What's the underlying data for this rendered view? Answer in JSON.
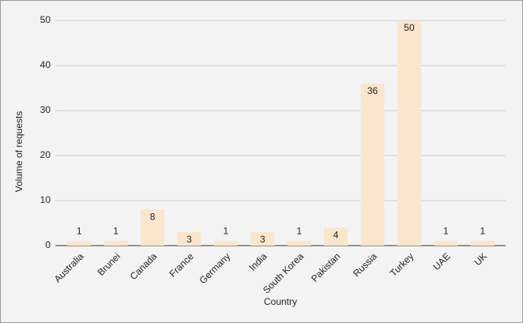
{
  "chart_data": {
    "type": "bar",
    "x_label": "Country",
    "y_label": "Volume of requests",
    "categories": [
      "Australia",
      "Brunei",
      "Canada",
      "France",
      "Germany",
      "India",
      "South Korea",
      "Pakistan",
      "Russia",
      "Turkey",
      "UAE",
      "UK"
    ],
    "values": [
      1,
      1,
      8,
      3,
      1,
      3,
      1,
      4,
      36,
      50,
      1,
      1
    ],
    "color": "#fce5cd",
    "ylim": [
      0,
      50
    ],
    "yticks": [
      0,
      10,
      20,
      30,
      40,
      50
    ],
    "grid": true
  }
}
